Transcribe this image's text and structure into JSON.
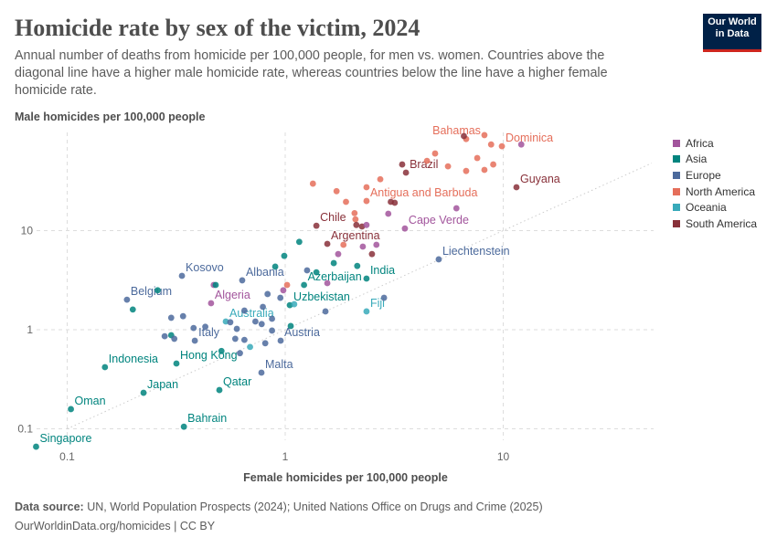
{
  "header": {
    "title": "Homicide rate by sex of the victim, 2024",
    "subtitle": "Annual number of deaths from homicide per 100,000 people, for men vs. women. Countries above the diagonal line have a higher male homicide rate, whereas countries below the line have a higher female homicide rate.",
    "logo_line1": "Our World",
    "logo_line2": "in Data"
  },
  "footer": {
    "source_label": "Data source:",
    "source_text": "UN, World Population Prospects (2024); United Nations Office on Drugs and Crime (2025)",
    "url": "OurWorldinData.org/homicides | CC BY"
  },
  "chart_data": {
    "type": "scatter",
    "title": "Homicide rate by sex of the victim, 2024",
    "xlabel": "Female homicides per 100,000 people",
    "ylabel": "Male homicides per 100,000 people",
    "x_scale": "log",
    "y_scale": "log",
    "xlim": [
      0.066,
      49
    ],
    "ylim": [
      0.063,
      98
    ],
    "x_ticks": [
      {
        "v": 0.1,
        "label": "0.1"
      },
      {
        "v": 1,
        "label": "1"
      },
      {
        "v": 10,
        "label": "10"
      }
    ],
    "y_ticks": [
      {
        "v": 0.1,
        "label": "0.1"
      },
      {
        "v": 1,
        "label": "1"
      },
      {
        "v": 10,
        "label": "10"
      }
    ],
    "grid": true,
    "reference_line": "y = x (dotted diagonal)",
    "legend_position": "right",
    "regions": [
      {
        "name": "Africa",
        "color": "#a2559c"
      },
      {
        "name": "Asia",
        "color": "#00847e"
      },
      {
        "name": "Europe",
        "color": "#4c6a9c"
      },
      {
        "name": "North America",
        "color": "#e56e5a"
      },
      {
        "name": "Oceania",
        "color": "#38aaba"
      },
      {
        "name": "South America",
        "color": "#883039"
      }
    ],
    "points": [
      {
        "label": "Singapore",
        "region": "Asia",
        "x": 0.072,
        "y": 0.066
      },
      {
        "label": "Oman",
        "region": "Asia",
        "x": 0.104,
        "y": 0.158
      },
      {
        "label": "Bahrain",
        "region": "Asia",
        "x": 0.343,
        "y": 0.105
      },
      {
        "label": "Japan",
        "region": "Asia",
        "x": 0.224,
        "y": 0.231
      },
      {
        "label": "Indonesia",
        "region": "Asia",
        "x": 0.149,
        "y": 0.419
      },
      {
        "label": "Qatar",
        "region": "Asia",
        "x": 0.499,
        "y": 0.246
      },
      {
        "label": "Hong Kong",
        "region": "Asia",
        "x": 0.317,
        "y": 0.456
      },
      {
        "label": "Malta",
        "region": "Europe",
        "x": 0.778,
        "y": 0.369
      },
      {
        "label": "Austria",
        "region": "Europe",
        "x": 0.953,
        "y": 0.775
      },
      {
        "label": "Italy",
        "region": "Europe",
        "x": 0.385,
        "y": 0.775
      },
      {
        "label": "Australia",
        "region": "Oceania",
        "x": 0.534,
        "y": 1.21
      },
      {
        "label": "Fiji",
        "region": "Oceania",
        "x": 2.36,
        "y": 1.53
      },
      {
        "label": "Uzbekistan",
        "region": "Asia",
        "x": 1.05,
        "y": 1.77
      },
      {
        "label": "Algeria",
        "region": "Africa",
        "x": 0.457,
        "y": 1.85
      },
      {
        "label": "Belgium",
        "region": "Europe",
        "x": 0.188,
        "y": 2.01
      },
      {
        "label": "Kosovo",
        "region": "Europe",
        "x": 0.336,
        "y": 3.5
      },
      {
        "label": "Albania",
        "region": "Europe",
        "x": 0.635,
        "y": 3.15
      },
      {
        "label": "Azerbaijan",
        "region": "Asia",
        "x": 1.22,
        "y": 2.83
      },
      {
        "label": "India",
        "region": "Asia",
        "x": 2.36,
        "y": 3.28
      },
      {
        "label": "Liechtenstein",
        "region": "Europe",
        "x": 5.06,
        "y": 5.13
      },
      {
        "label": "Argentina",
        "region": "South America",
        "x": 1.56,
        "y": 7.35
      },
      {
        "label": "Cape Verde",
        "region": "Africa",
        "x": 3.54,
        "y": 10.5
      },
      {
        "label": "Chile",
        "region": "South America",
        "x": 1.39,
        "y": 11.2
      },
      {
        "label": "Antigua and Barbuda",
        "region": "North America",
        "x": 2.36,
        "y": 19.9
      },
      {
        "label": "Brazil",
        "region": "South America",
        "x": 3.58,
        "y": 38.5
      },
      {
        "label": "Guyana",
        "region": "South America",
        "x": 11.5,
        "y": 27.4
      },
      {
        "label": "Dominica",
        "region": "North America",
        "x": 9.86,
        "y": 71
      },
      {
        "label": "Bahamas",
        "region": "North America",
        "x": 6.76,
        "y": 84
      },
      {
        "region": "North America",
        "x": 1.34,
        "y": 29.8
      },
      {
        "region": "North America",
        "x": 1.72,
        "y": 25
      },
      {
        "region": "North America",
        "x": 2.36,
        "y": 27.4
      },
      {
        "region": "North America",
        "x": 2.73,
        "y": 33
      },
      {
        "region": "North America",
        "x": 2.08,
        "y": 15
      },
      {
        "region": "North America",
        "x": 4.47,
        "y": 50.6
      },
      {
        "region": "North America",
        "x": 4.87,
        "y": 60
      },
      {
        "region": "North America",
        "x": 5.58,
        "y": 44.5
      },
      {
        "region": "North America",
        "x": 6.76,
        "y": 40
      },
      {
        "region": "North America",
        "x": 7.6,
        "y": 54
      },
      {
        "region": "North America",
        "x": 8.2,
        "y": 92
      },
      {
        "region": "North America",
        "x": 8.8,
        "y": 74
      },
      {
        "region": "North America",
        "x": 8.2,
        "y": 41
      },
      {
        "region": "North America",
        "x": 9.0,
        "y": 46.5
      },
      {
        "region": "North America",
        "x": 1.02,
        "y": 2.83
      },
      {
        "region": "North America",
        "x": 1.85,
        "y": 7.2
      },
      {
        "region": "North America",
        "x": 2.1,
        "y": 13
      },
      {
        "region": "North America",
        "x": 1.9,
        "y": 19.5
      },
      {
        "region": "South America",
        "x": 6.6,
        "y": 90
      },
      {
        "region": "South America",
        "x": 3.44,
        "y": 46.5
      },
      {
        "region": "South America",
        "x": 3.18,
        "y": 19.1
      },
      {
        "region": "South America",
        "x": 2.12,
        "y": 11.4
      },
      {
        "region": "South America",
        "x": 2.25,
        "y": 11
      },
      {
        "region": "South America",
        "x": 2.5,
        "y": 5.8
      },
      {
        "region": "South America",
        "x": 3.05,
        "y": 19.5
      },
      {
        "region": "Africa",
        "x": 12.1,
        "y": 74
      },
      {
        "region": "Africa",
        "x": 6.1,
        "y": 16.8
      },
      {
        "region": "Africa",
        "x": 2.97,
        "y": 14.8
      },
      {
        "region": "Africa",
        "x": 2.36,
        "y": 11.4
      },
      {
        "region": "Africa",
        "x": 1.75,
        "y": 5.8
      },
      {
        "region": "Africa",
        "x": 2.27,
        "y": 6.9
      },
      {
        "region": "Africa",
        "x": 2.62,
        "y": 7.2
      },
      {
        "region": "Africa",
        "x": 0.98,
        "y": 2.5
      },
      {
        "region": "Africa",
        "x": 1.56,
        "y": 2.95
      },
      {
        "region": "Africa",
        "x": 0.47,
        "y": 2.83
      },
      {
        "region": "Asia",
        "x": 1.16,
        "y": 7.7
      },
      {
        "region": "Asia",
        "x": 0.99,
        "y": 5.56
      },
      {
        "region": "Asia",
        "x": 0.9,
        "y": 4.33
      },
      {
        "region": "Asia",
        "x": 1.39,
        "y": 3.8
      },
      {
        "region": "Asia",
        "x": 1.67,
        "y": 4.7
      },
      {
        "region": "Asia",
        "x": 2.14,
        "y": 4.4
      },
      {
        "region": "Asia",
        "x": 0.26,
        "y": 2.5
      },
      {
        "region": "Asia",
        "x": 0.2,
        "y": 1.6
      },
      {
        "region": "Asia",
        "x": 1.06,
        "y": 1.09
      },
      {
        "region": "Asia",
        "x": 0.3,
        "y": 0.88
      },
      {
        "region": "Asia",
        "x": 0.51,
        "y": 0.61
      },
      {
        "region": "Asia",
        "x": 0.48,
        "y": 2.83
      },
      {
        "region": "Europe",
        "x": 2.84,
        "y": 2.1
      },
      {
        "region": "Europe",
        "x": 1.53,
        "y": 1.53
      },
      {
        "region": "Europe",
        "x": 0.3,
        "y": 1.32
      },
      {
        "region": "Europe",
        "x": 0.34,
        "y": 1.37
      },
      {
        "region": "Europe",
        "x": 0.65,
        "y": 1.56
      },
      {
        "region": "Europe",
        "x": 0.79,
        "y": 1.7
      },
      {
        "region": "Europe",
        "x": 0.83,
        "y": 2.29
      },
      {
        "region": "Europe",
        "x": 0.95,
        "y": 2.1
      },
      {
        "region": "Europe",
        "x": 1.26,
        "y": 3.97
      },
      {
        "region": "Europe",
        "x": 0.78,
        "y": 1.14
      },
      {
        "region": "Europe",
        "x": 0.73,
        "y": 1.21
      },
      {
        "region": "Europe",
        "x": 0.87,
        "y": 1.29
      },
      {
        "region": "Europe",
        "x": 0.56,
        "y": 1.19
      },
      {
        "region": "Europe",
        "x": 0.6,
        "y": 1.02
      },
      {
        "region": "Europe",
        "x": 0.43,
        "y": 1.07
      },
      {
        "region": "Europe",
        "x": 0.28,
        "y": 0.86
      },
      {
        "region": "Europe",
        "x": 0.31,
        "y": 0.81
      },
      {
        "region": "Europe",
        "x": 0.59,
        "y": 0.81
      },
      {
        "region": "Europe",
        "x": 0.65,
        "y": 0.79
      },
      {
        "region": "Europe",
        "x": 0.81,
        "y": 0.73
      },
      {
        "region": "Europe",
        "x": 0.87,
        "y": 0.98
      },
      {
        "region": "Europe",
        "x": 0.62,
        "y": 0.58
      },
      {
        "region": "Europe",
        "x": 0.38,
        "y": 1.04
      },
      {
        "region": "Oceania",
        "x": 0.69,
        "y": 0.67
      },
      {
        "region": "Oceania",
        "x": 1.1,
        "y": 1.81
      }
    ]
  }
}
